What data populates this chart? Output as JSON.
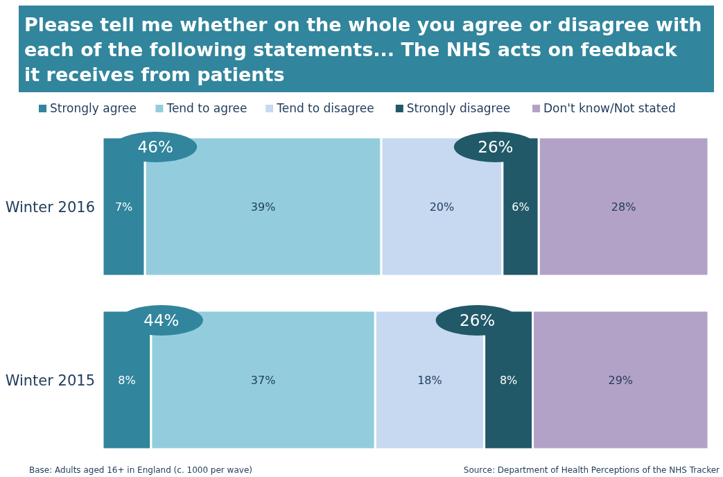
{
  "chart_data": {
    "type": "bar",
    "orientation": "horizontal",
    "stacked": true,
    "title": "Please tell me whether on the whole you agree or disagree with each of the following statements... The NHS acts on feedback it receives from patients",
    "categories": [
      "Winter 2016",
      "Winter 2015"
    ],
    "series": [
      {
        "name": "Strongly agree",
        "color": "#31859c",
        "values": [
          7,
          8
        ],
        "value_labels": [
          "7%",
          "8%"
        ]
      },
      {
        "name": "Tend to agree",
        "color": "#93cddd",
        "values": [
          39,
          37
        ],
        "value_labels": [
          "39%",
          "37%"
        ]
      },
      {
        "name": "Tend to disagree",
        "color": "#c6d9f1",
        "values": [
          20,
          18
        ],
        "value_labels": [
          "20%",
          "18%"
        ]
      },
      {
        "name": "Strongly disagree",
        "color": "#215968",
        "values": [
          6,
          8
        ],
        "value_labels": [
          "6%",
          "8%"
        ]
      },
      {
        "name": "Don't know/Not stated",
        "color": "#b3a2c7",
        "values": [
          28,
          29
        ],
        "value_labels": [
          "28%",
          "29%"
        ]
      }
    ],
    "legend": "top",
    "annotations": [
      "46%",
      "26%",
      "44%",
      "26%",
      "Base: Adults aged 16+ in England (c. 1000 per wave)",
      "Source: Department of Health Perceptions of the NHS Tracker"
    ]
  }
}
